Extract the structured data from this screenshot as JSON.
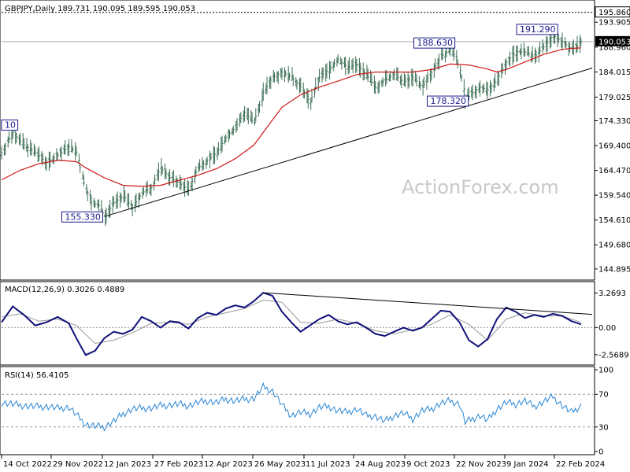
{
  "chart_data": [
    {
      "type": "line",
      "panel": "price",
      "title": "GBPJPY,Daily  189.731 190.095 189.595 190.053",
      "y_range": [
        143.0,
        198.0
      ],
      "y_ticks": [
        "195.860",
        "193.905",
        "188.960",
        "184.015",
        "179.025",
        "174.330",
        "169.400",
        "164.470",
        "159.540",
        "154.610",
        "149.680",
        "144.895"
      ],
      "last_price": "190.053",
      "resistance_label": "195.860",
      "x_tick_labels": [
        "14 Oct 2022",
        "29 Nov 2022",
        "12 Jan 2023",
        "27 Feb 2023",
        "12 Apr 2023",
        "26 May 2023",
        "11 Jul 2023",
        "24 Aug 2023",
        "9 Oct 2023",
        "22 Nov 2023",
        "9 Jan 2024",
        "22 Feb 2024"
      ],
      "price_path": [
        [
          0,
          168
        ],
        [
          6,
          172
        ],
        [
          12,
          169.5
        ],
        [
          18,
          168
        ],
        [
          24,
          166
        ],
        [
          30,
          167.5
        ],
        [
          36,
          169.2
        ],
        [
          40,
          168
        ],
        [
          44,
          162
        ],
        [
          48,
          158
        ],
        [
          52,
          157.5
        ],
        [
          55,
          155.3
        ],
        [
          60,
          158
        ],
        [
          65,
          159.5
        ],
        [
          70,
          157
        ],
        [
          75,
          160
        ],
        [
          80,
          161
        ],
        [
          85,
          165
        ],
        [
          90,
          163
        ],
        [
          95,
          162
        ],
        [
          100,
          160.5
        ],
        [
          105,
          165
        ],
        [
          110,
          166.5
        ],
        [
          115,
          168
        ],
        [
          120,
          171
        ],
        [
          125,
          173
        ],
        [
          130,
          176
        ],
        [
          135,
          174
        ],
        [
          140,
          180
        ],
        [
          145,
          183
        ],
        [
          150,
          184
        ],
        [
          155,
          183
        ],
        [
          160,
          181
        ],
        [
          165,
          178
        ],
        [
          170,
          183
        ],
        [
          175,
          184.5
        ],
        [
          180,
          186.5
        ],
        [
          185,
          185
        ],
        [
          190,
          185.5
        ],
        [
          195,
          183.5
        ],
        [
          200,
          181
        ],
        [
          205,
          182.5
        ],
        [
          210,
          183.5
        ],
        [
          215,
          182
        ],
        [
          220,
          183
        ],
        [
          225,
          181
        ],
        [
          230,
          184
        ],
        [
          235,
          187
        ],
        [
          240,
          188.6
        ],
        [
          243,
          187
        ],
        [
          246,
          183
        ],
        [
          248,
          178.3
        ],
        [
          252,
          180
        ],
        [
          256,
          181
        ],
        [
          260,
          180.5
        ],
        [
          265,
          182.5
        ],
        [
          270,
          186
        ],
        [
          275,
          188
        ],
        [
          280,
          188
        ],
        [
          285,
          187
        ],
        [
          290,
          189
        ],
        [
          295,
          191.3
        ],
        [
          300,
          190
        ],
        [
          305,
          188.5
        ],
        [
          308,
          189.2
        ],
        [
          310,
          190.05
        ]
      ],
      "ma_path": [
        [
          0,
          162.6
        ],
        [
          10,
          164.5
        ],
        [
          20,
          165.8
        ],
        [
          30,
          166.5
        ],
        [
          40,
          166.2
        ],
        [
          45,
          165
        ],
        [
          55,
          163
        ],
        [
          65,
          161.5
        ],
        [
          75,
          161.3
        ],
        [
          85,
          161.5
        ],
        [
          95,
          162.5
        ],
        [
          105,
          163.5
        ],
        [
          115,
          164.8
        ],
        [
          125,
          166.8
        ],
        [
          135,
          169.5
        ],
        [
          145,
          174.5
        ],
        [
          150,
          177
        ],
        [
          160,
          179.5
        ],
        [
          170,
          181
        ],
        [
          180,
          182.2
        ],
        [
          190,
          183.5
        ],
        [
          200,
          184
        ],
        [
          210,
          184
        ],
        [
          220,
          184
        ],
        [
          230,
          184.5
        ],
        [
          240,
          185.6
        ],
        [
          250,
          185.4
        ],
        [
          260,
          184.6
        ],
        [
          265,
          184
        ],
        [
          270,
          184.5
        ],
        [
          280,
          186
        ],
        [
          290,
          187.5
        ],
        [
          300,
          188.5
        ],
        [
          305,
          188.7
        ],
        [
          310,
          188.8
        ]
      ],
      "trendline": [
        [
          55,
          155.3
        ],
        [
          316,
          184.8
        ]
      ],
      "callouts": [
        {
          "label": "10",
          "x": 0,
          "y": 172.3
        },
        {
          "label": "155.330",
          "x": 55,
          "y": 155.3
        },
        {
          "label": "188.630",
          "x": 240,
          "y": 188.6
        },
        {
          "label": "178.320",
          "x": 248,
          "y": 178.3
        },
        {
          "label": "191.290",
          "x": 295,
          "y": 191.3
        }
      ],
      "watermark": "ActionForex.com"
    },
    {
      "type": "line",
      "panel": "macd",
      "title": "MACD(12,26,9) 0.3026 0.4889",
      "y_range": [
        -3.4,
        4.2
      ],
      "y_ticks": [
        "3.2693",
        "0.00",
        "-2.5689"
      ],
      "macd_path": [
        [
          0,
          0.5
        ],
        [
          6,
          2.0
        ],
        [
          12,
          1.2
        ],
        [
          18,
          0.2
        ],
        [
          24,
          0.5
        ],
        [
          30,
          1.0
        ],
        [
          36,
          0.4
        ],
        [
          40,
          -1.0
        ],
        [
          45,
          -2.6
        ],
        [
          50,
          -2.2
        ],
        [
          55,
          -1.0
        ],
        [
          60,
          -0.4
        ],
        [
          65,
          -0.6
        ],
        [
          70,
          -0.2
        ],
        [
          75,
          1.0
        ],
        [
          80,
          0.6
        ],
        [
          85,
          0.0
        ],
        [
          90,
          0.6
        ],
        [
          95,
          0.5
        ],
        [
          100,
          -0.1
        ],
        [
          105,
          0.9
        ],
        [
          110,
          1.4
        ],
        [
          115,
          1.2
        ],
        [
          120,
          1.8
        ],
        [
          125,
          2.1
        ],
        [
          130,
          1.9
        ],
        [
          135,
          2.5
        ],
        [
          140,
          3.3
        ],
        [
          145,
          3.0
        ],
        [
          150,
          1.5
        ],
        [
          155,
          0.5
        ],
        [
          160,
          -0.4
        ],
        [
          165,
          0.2
        ],
        [
          170,
          0.8
        ],
        [
          175,
          1.2
        ],
        [
          180,
          0.6
        ],
        [
          185,
          0.3
        ],
        [
          190,
          0.5
        ],
        [
          195,
          0.0
        ],
        [
          200,
          -0.6
        ],
        [
          205,
          -0.8
        ],
        [
          210,
          -0.4
        ],
        [
          215,
          0.0
        ],
        [
          220,
          -0.3
        ],
        [
          225,
          0.0
        ],
        [
          230,
          0.8
        ],
        [
          235,
          1.6
        ],
        [
          240,
          1.5
        ],
        [
          245,
          0.5
        ],
        [
          250,
          -1.2
        ],
        [
          255,
          -1.8
        ],
        [
          260,
          -1.1
        ],
        [
          265,
          0.8
        ],
        [
          270,
          1.9
        ],
        [
          275,
          1.5
        ],
        [
          280,
          0.9
        ],
        [
          285,
          1.2
        ],
        [
          290,
          1.0
        ],
        [
          295,
          1.3
        ],
        [
          300,
          1.1
        ],
        [
          305,
          0.6
        ],
        [
          310,
          0.3
        ]
      ],
      "signal_path": [
        [
          0,
          1.0
        ],
        [
          10,
          1.3
        ],
        [
          20,
          0.6
        ],
        [
          30,
          0.8
        ],
        [
          40,
          0.2
        ],
        [
          50,
          -1.5
        ],
        [
          60,
          -1.2
        ],
        [
          70,
          -0.5
        ],
        [
          80,
          0.4
        ],
        [
          90,
          0.5
        ],
        [
          100,
          0.3
        ],
        [
          110,
          1.0
        ],
        [
          120,
          1.4
        ],
        [
          130,
          1.8
        ],
        [
          140,
          2.6
        ],
        [
          150,
          2.4
        ],
        [
          160,
          0.5
        ],
        [
          170,
          0.4
        ],
        [
          180,
          0.8
        ],
        [
          190,
          0.4
        ],
        [
          200,
          -0.3
        ],
        [
          210,
          -0.6
        ],
        [
          220,
          -0.2
        ],
        [
          230,
          0.3
        ],
        [
          240,
          1.2
        ],
        [
          250,
          0.3
        ],
        [
          260,
          -1.2
        ],
        [
          270,
          0.8
        ],
        [
          280,
          1.4
        ],
        [
          290,
          1.1
        ],
        [
          300,
          1.1
        ],
        [
          310,
          0.5
        ]
      ],
      "trendline": [
        [
          140,
          3.3
        ],
        [
          316,
          1.25
        ]
      ]
    },
    {
      "type": "line",
      "panel": "rsi",
      "title": "RSI(14) 56.4105",
      "y_range": [
        0,
        100
      ],
      "y_ticks": [
        "100",
        "70",
        "30",
        "0"
      ],
      "levels": [
        70,
        30
      ],
      "rsi_path": [
        [
          0,
          60
        ],
        [
          6,
          58
        ],
        [
          12,
          56
        ],
        [
          18,
          55
        ],
        [
          24,
          55
        ],
        [
          30,
          53
        ],
        [
          36,
          54
        ],
        [
          40,
          45
        ],
        [
          45,
          33
        ],
        [
          50,
          31
        ],
        [
          55,
          30
        ],
        [
          60,
          37
        ],
        [
          65,
          46
        ],
        [
          70,
          52
        ],
        [
          75,
          53
        ],
        [
          80,
          53
        ],
        [
          85,
          56
        ],
        [
          90,
          57
        ],
        [
          95,
          58
        ],
        [
          100,
          56
        ],
        [
          105,
          60
        ],
        [
          110,
          62
        ],
        [
          115,
          60
        ],
        [
          120,
          64
        ],
        [
          125,
          62
        ],
        [
          130,
          64
        ],
        [
          135,
          65
        ],
        [
          140,
          79
        ],
        [
          145,
          74
        ],
        [
          150,
          57
        ],
        [
          155,
          44
        ],
        [
          160,
          48
        ],
        [
          165,
          46
        ],
        [
          170,
          54
        ],
        [
          175,
          55
        ],
        [
          180,
          50
        ],
        [
          185,
          48
        ],
        [
          190,
          52
        ],
        [
          195,
          44
        ],
        [
          200,
          43
        ],
        [
          205,
          37
        ],
        [
          210,
          44
        ],
        [
          215,
          47
        ],
        [
          220,
          40
        ],
        [
          225,
          50
        ],
        [
          230,
          52
        ],
        [
          235,
          59
        ],
        [
          240,
          62
        ],
        [
          245,
          58
        ],
        [
          248,
          36
        ],
        [
          252,
          40
        ],
        [
          256,
          44
        ],
        [
          260,
          38
        ],
        [
          265,
          52
        ],
        [
          270,
          60
        ],
        [
          275,
          58
        ],
        [
          280,
          62
        ],
        [
          285,
          55
        ],
        [
          290,
          61
        ],
        [
          295,
          67
        ],
        [
          300,
          56
        ],
        [
          305,
          48
        ],
        [
          310,
          56
        ]
      ]
    }
  ]
}
